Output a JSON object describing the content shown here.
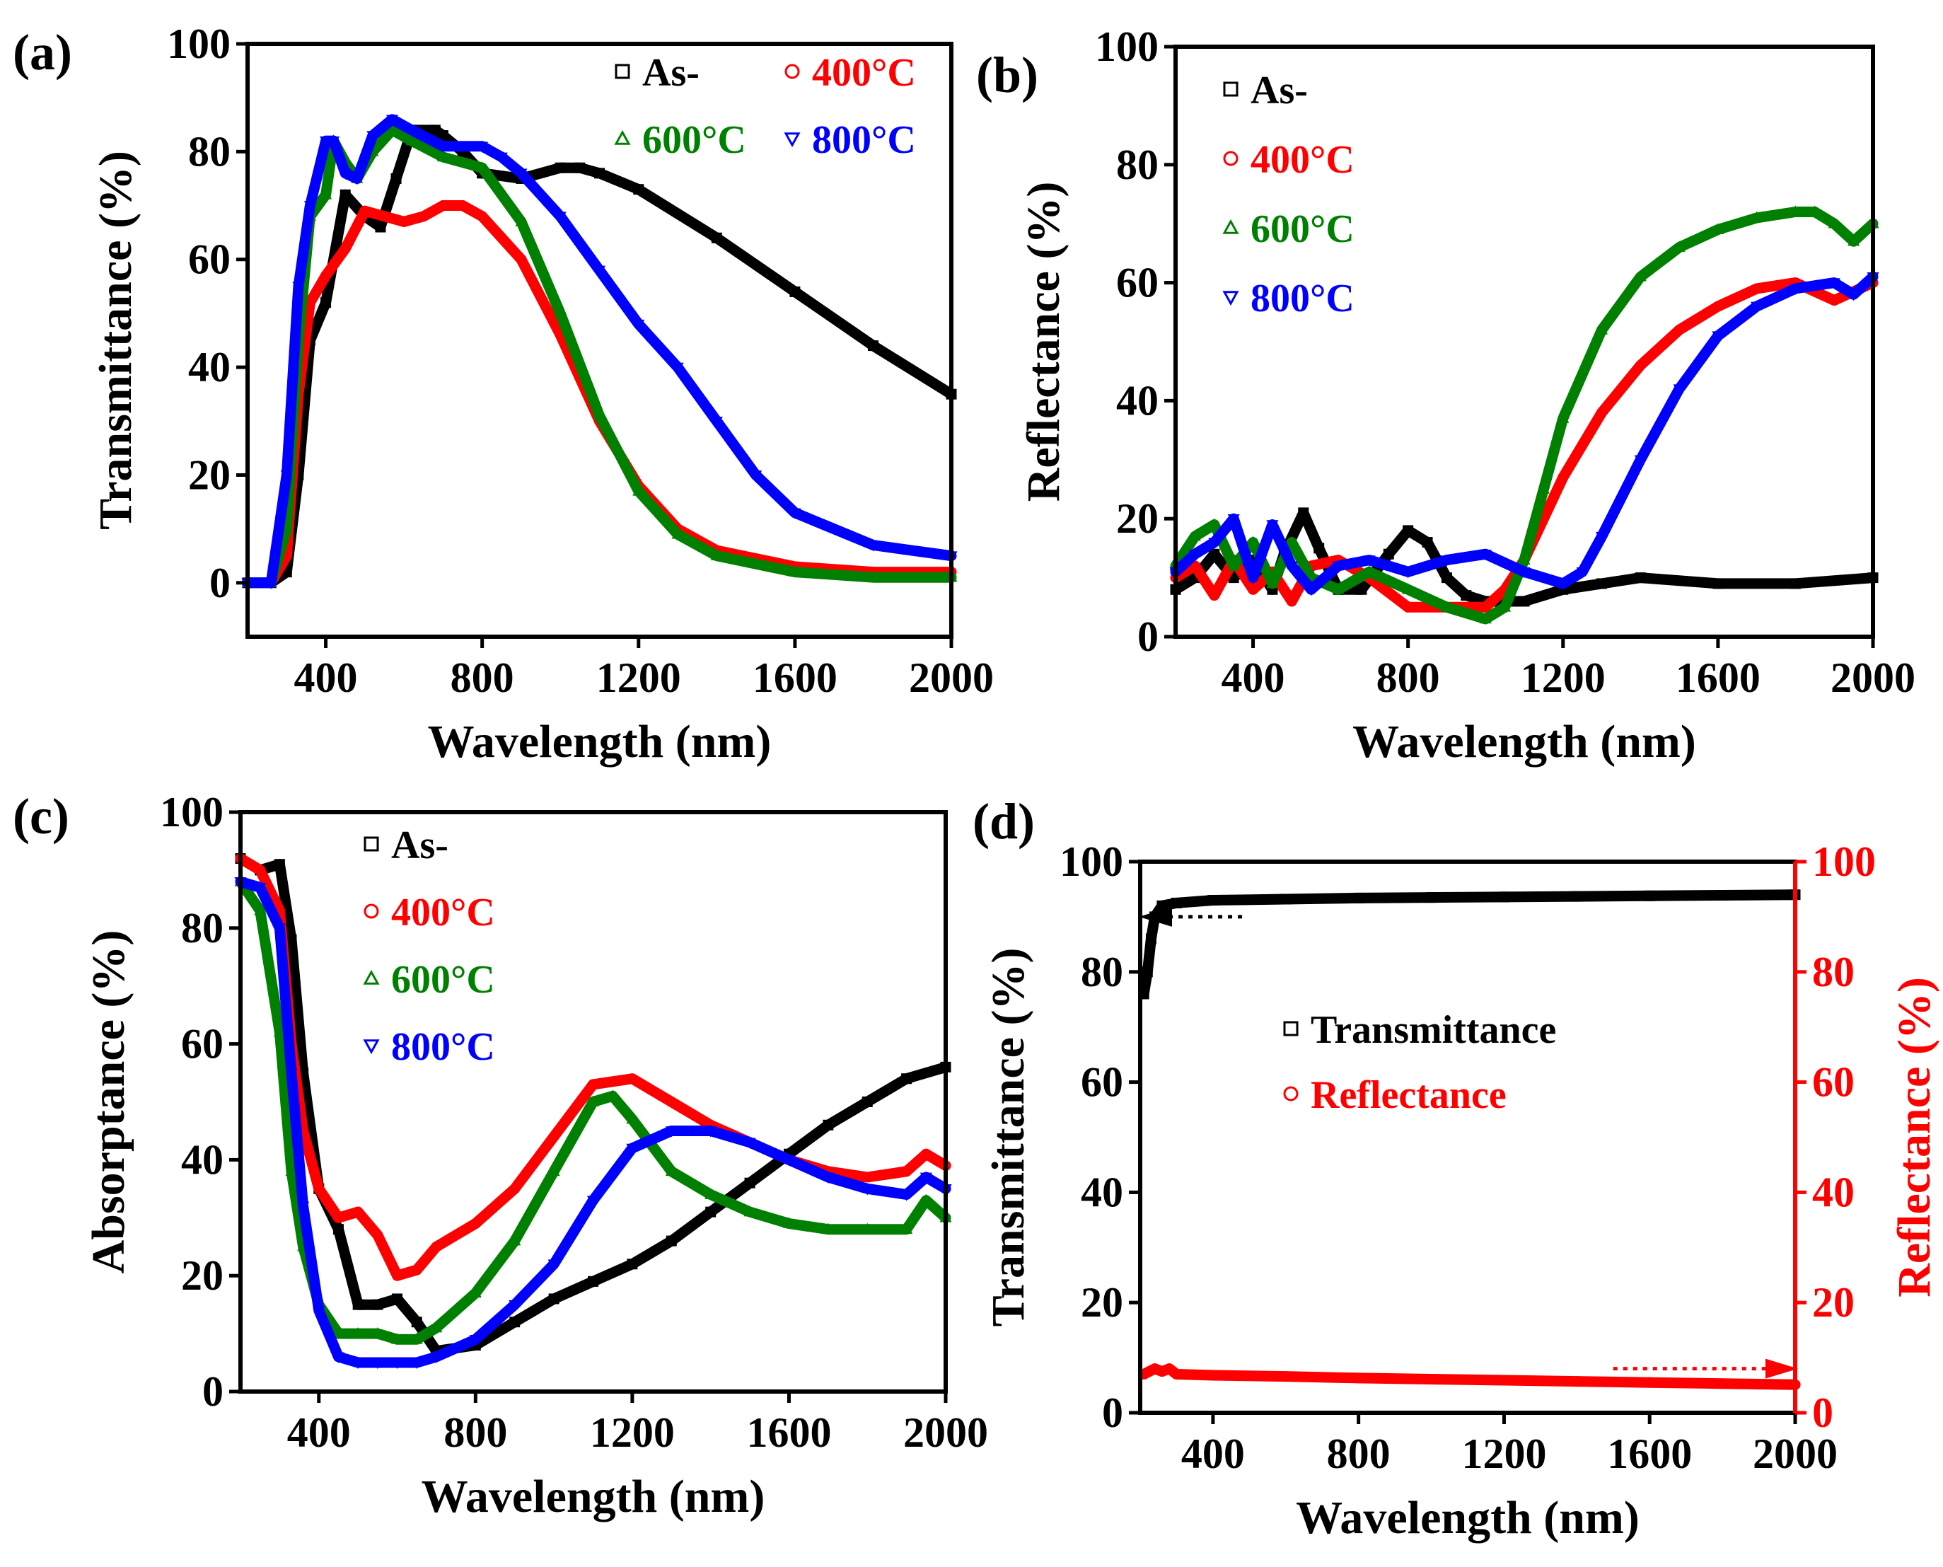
{
  "chart_data": [
    {
      "type": "line",
      "panel_label": "(a)",
      "xlabel": "Wavelength (nm)",
      "ylabel": "Transmittance (%)",
      "xlim": [
        200,
        2000
      ],
      "ylim": [
        -10,
        100
      ],
      "xticks": [
        400,
        800,
        1200,
        1600,
        2000
      ],
      "yticks": [
        0,
        20,
        40,
        60,
        80,
        100
      ],
      "legend_layout": "grid",
      "series": [
        {
          "name": "As-",
          "color": "#000000",
          "marker": "square",
          "x": [
            200,
            260,
            300,
            330,
            360,
            400,
            450,
            500,
            540,
            580,
            620,
            680,
            700,
            750,
            800,
            900,
            1000,
            1050,
            1100,
            1200,
            1400,
            1600,
            1800,
            2000
          ],
          "y": [
            0,
            0,
            2,
            20,
            45,
            52,
            72,
            68,
            66,
            75,
            84,
            84,
            83,
            80,
            76,
            75,
            77,
            77,
            76,
            73,
            64,
            54,
            44,
            35
          ]
        },
        {
          "name": "400°C",
          "color": "#ff0000",
          "marker": "circle",
          "x": [
            200,
            260,
            300,
            330,
            360,
            400,
            450,
            500,
            550,
            600,
            650,
            700,
            750,
            800,
            900,
            1000,
            1100,
            1200,
            1300,
            1400,
            1600,
            1800,
            2000
          ],
          "y": [
            0,
            0,
            5,
            35,
            52,
            57,
            62,
            69,
            68,
            67,
            68,
            70,
            70,
            68,
            60,
            46,
            30,
            18,
            10,
            6,
            3,
            2,
            2
          ]
        },
        {
          "name": "600°C",
          "color": "#008000",
          "marker": "triangle-up",
          "x": [
            200,
            260,
            300,
            330,
            360,
            400,
            420,
            450,
            480,
            520,
            570,
            620,
            700,
            800,
            900,
            1000,
            1100,
            1200,
            1300,
            1400,
            1600,
            1800,
            2000
          ],
          "y": [
            0,
            0,
            10,
            45,
            68,
            72,
            82,
            78,
            75,
            80,
            84,
            82,
            79,
            77,
            67,
            50,
            31,
            17,
            9,
            5,
            2,
            1,
            1
          ]
        },
        {
          "name": "800°C",
          "color": "#0000ff",
          "marker": "triangle-down",
          "x": [
            200,
            260,
            300,
            330,
            360,
            400,
            420,
            450,
            480,
            520,
            570,
            620,
            700,
            800,
            850,
            900,
            1000,
            1100,
            1200,
            1300,
            1400,
            1500,
            1600,
            1800,
            2000
          ],
          "y": [
            0,
            0,
            20,
            55,
            70,
            82,
            82,
            76,
            75,
            83,
            86,
            84,
            81,
            81,
            79,
            76,
            68,
            58,
            48,
            40,
            30,
            20,
            13,
            7,
            5
          ]
        }
      ]
    },
    {
      "type": "line",
      "panel_label": "(b)",
      "xlabel": "Wavelength (nm)",
      "ylabel": "Reflectance (%)",
      "xlim": [
        200,
        2000
      ],
      "ylim": [
        0,
        100
      ],
      "xticks": [
        400,
        800,
        1200,
        1600,
        2000
      ],
      "yticks": [
        0,
        20,
        40,
        60,
        80,
        100
      ],
      "legend_layout": "column",
      "series": [
        {
          "name": "As-",
          "color": "#000000",
          "marker": "square",
          "x": [
            200,
            250,
            300,
            350,
            400,
            450,
            480,
            530,
            570,
            620,
            680,
            750,
            800,
            850,
            900,
            950,
            1000,
            1100,
            1200,
            1300,
            1400,
            1600,
            1800,
            2000
          ],
          "y": [
            8,
            10,
            14,
            10,
            13,
            8,
            14,
            21,
            15,
            8,
            8,
            14,
            18,
            16,
            10,
            7,
            6,
            6,
            8,
            9,
            10,
            9,
            9,
            10
          ]
        },
        {
          "name": "400°C",
          "color": "#ff0000",
          "marker": "circle",
          "x": [
            200,
            250,
            300,
            350,
            400,
            450,
            500,
            550,
            620,
            700,
            800,
            900,
            1000,
            1050,
            1100,
            1150,
            1200,
            1300,
            1400,
            1500,
            1600,
            1700,
            1800,
            1900,
            2000
          ],
          "y": [
            10,
            12,
            7,
            13,
            8,
            11,
            6,
            12,
            13,
            10,
            5,
            5,
            5,
            8,
            13,
            20,
            27,
            38,
            46,
            52,
            56,
            59,
            60,
            57,
            60
          ]
        },
        {
          "name": "600°C",
          "color": "#008000",
          "marker": "triangle-up",
          "x": [
            200,
            250,
            300,
            350,
            400,
            450,
            500,
            550,
            620,
            700,
            800,
            900,
            1000,
            1050,
            1100,
            1150,
            1200,
            1300,
            1400,
            1500,
            1600,
            1700,
            1800,
            1850,
            1900,
            1950,
            2000
          ],
          "y": [
            12,
            17,
            19,
            12,
            16,
            9,
            16,
            10,
            8,
            11,
            8,
            5,
            3,
            5,
            13,
            25,
            37,
            52,
            61,
            66,
            69,
            71,
            72,
            72,
            70,
            67,
            70
          ]
        },
        {
          "name": "800°C",
          "color": "#0000ff",
          "marker": "triangle-down",
          "x": [
            200,
            250,
            300,
            350,
            400,
            450,
            500,
            550,
            620,
            700,
            800,
            900,
            1000,
            1100,
            1200,
            1250,
            1300,
            1400,
            1500,
            1600,
            1700,
            1800,
            1900,
            1950,
            2000
          ],
          "y": [
            11,
            14,
            16,
            20,
            10,
            19,
            12,
            8,
            12,
            13,
            11,
            13,
            14,
            11,
            9,
            11,
            17,
            30,
            42,
            51,
            56,
            59,
            60,
            58,
            61
          ]
        }
      ]
    },
    {
      "type": "line",
      "panel_label": "(c)",
      "xlabel": "Wavelength (nm)",
      "ylabel": "Absorptance (%)",
      "xlim": [
        200,
        2000
      ],
      "ylim": [
        0,
        100
      ],
      "xticks": [
        400,
        800,
        1200,
        1600,
        2000
      ],
      "yticks": [
        0,
        20,
        40,
        60,
        80,
        100
      ],
      "legend_layout": "column",
      "series": [
        {
          "name": "As-",
          "color": "#000000",
          "marker": "square",
          "x": [
            200,
            250,
            300,
            330,
            360,
            400,
            450,
            500,
            550,
            600,
            650,
            700,
            800,
            900,
            1000,
            1100,
            1200,
            1300,
            1400,
            1500,
            1600,
            1700,
            1800,
            1900,
            2000
          ],
          "y": [
            92,
            90,
            91,
            78,
            55,
            35,
            28,
            15,
            15,
            16,
            12,
            7,
            8,
            12,
            16,
            19,
            22,
            26,
            31,
            36,
            41,
            46,
            50,
            54,
            56
          ]
        },
        {
          "name": "400°C",
          "color": "#ff0000",
          "marker": "circle",
          "x": [
            200,
            250,
            300,
            330,
            360,
            400,
            450,
            500,
            550,
            600,
            650,
            700,
            800,
            900,
            1000,
            1100,
            1200,
            1300,
            1400,
            1500,
            1600,
            1700,
            1800,
            1900,
            1950,
            2000
          ],
          "y": [
            92,
            90,
            83,
            60,
            45,
            35,
            30,
            31,
            27,
            20,
            21,
            25,
            29,
            35,
            44,
            53,
            54,
            50,
            46,
            43,
            40,
            38,
            37,
            38,
            41,
            39
          ]
        },
        {
          "name": "600°C",
          "color": "#008000",
          "marker": "triangle-up",
          "x": [
            200,
            250,
            300,
            330,
            360,
            400,
            450,
            500,
            550,
            600,
            650,
            700,
            800,
            900,
            1000,
            1100,
            1150,
            1200,
            1300,
            1400,
            1500,
            1600,
            1700,
            1800,
            1900,
            1950,
            2000
          ],
          "y": [
            88,
            83,
            62,
            38,
            25,
            15,
            10,
            10,
            10,
            9,
            9,
            11,
            17,
            26,
            38,
            50,
            51,
            47,
            38,
            34,
            31,
            29,
            28,
            28,
            28,
            33,
            30
          ]
        },
        {
          "name": "800°C",
          "color": "#0000ff",
          "marker": "triangle-down",
          "x": [
            200,
            250,
            300,
            330,
            360,
            400,
            450,
            500,
            550,
            600,
            650,
            700,
            800,
            900,
            1000,
            1100,
            1200,
            1300,
            1400,
            1500,
            1600,
            1700,
            1800,
            1900,
            1950,
            2000
          ],
          "y": [
            88,
            87,
            80,
            55,
            32,
            14,
            6,
            5,
            5,
            5,
            5,
            6,
            9,
            15,
            22,
            33,
            42,
            45,
            45,
            43,
            40,
            37,
            35,
            34,
            37,
            35
          ]
        }
      ]
    },
    {
      "type": "line",
      "panel_label": "(d)",
      "xlabel": "Wavelength (nm)",
      "ylabel": "Transmittance (%)",
      "ylabel_right": "Reflectance (%)",
      "xlim": [
        200,
        2000
      ],
      "ylim": [
        0,
        100
      ],
      "ylim_right": [
        0,
        100
      ],
      "xticks": [
        400,
        800,
        1200,
        1600,
        2000
      ],
      "yticks": [
        0,
        20,
        40,
        60,
        80,
        100
      ],
      "yticks_right": [
        0,
        20,
        40,
        60,
        80,
        100
      ],
      "legend_layout": "column",
      "series": [
        {
          "name": "Transmittance",
          "color": "#000000",
          "marker": "square",
          "axis": "left",
          "x": [
            210,
            220,
            230,
            240,
            260,
            300,
            400,
            600,
            800,
            1000,
            1200,
            1400,
            1600,
            1800,
            2000
          ],
          "y": [
            76,
            80,
            86,
            90,
            92,
            92.5,
            93,
            93.2,
            93.4,
            93.5,
            93.6,
            93.7,
            93.8,
            93.9,
            94
          ]
        },
        {
          "name": "Reflectance",
          "color": "#ff0000",
          "marker": "circle",
          "axis": "right",
          "x": [
            210,
            240,
            260,
            280,
            300,
            400,
            600,
            800,
            1000,
            1200,
            1400,
            1600,
            1800,
            2000
          ],
          "y": [
            7,
            8,
            7.5,
            8,
            7,
            6.8,
            6.6,
            6.3,
            6.1,
            5.9,
            5.7,
            5.5,
            5.3,
            5.1
          ]
        }
      ],
      "annotations": [
        {
          "type": "dotted-arrow",
          "points_to": "left-axis",
          "color": "#000000",
          "x_from": 480,
          "x_to": 200,
          "y": 90,
          "axis": "left"
        },
        {
          "type": "dotted-arrow",
          "points_to": "right-axis",
          "color": "#ff0000",
          "x_from": 1500,
          "x_to": 2000,
          "y": 8,
          "axis": "right"
        }
      ]
    }
  ]
}
